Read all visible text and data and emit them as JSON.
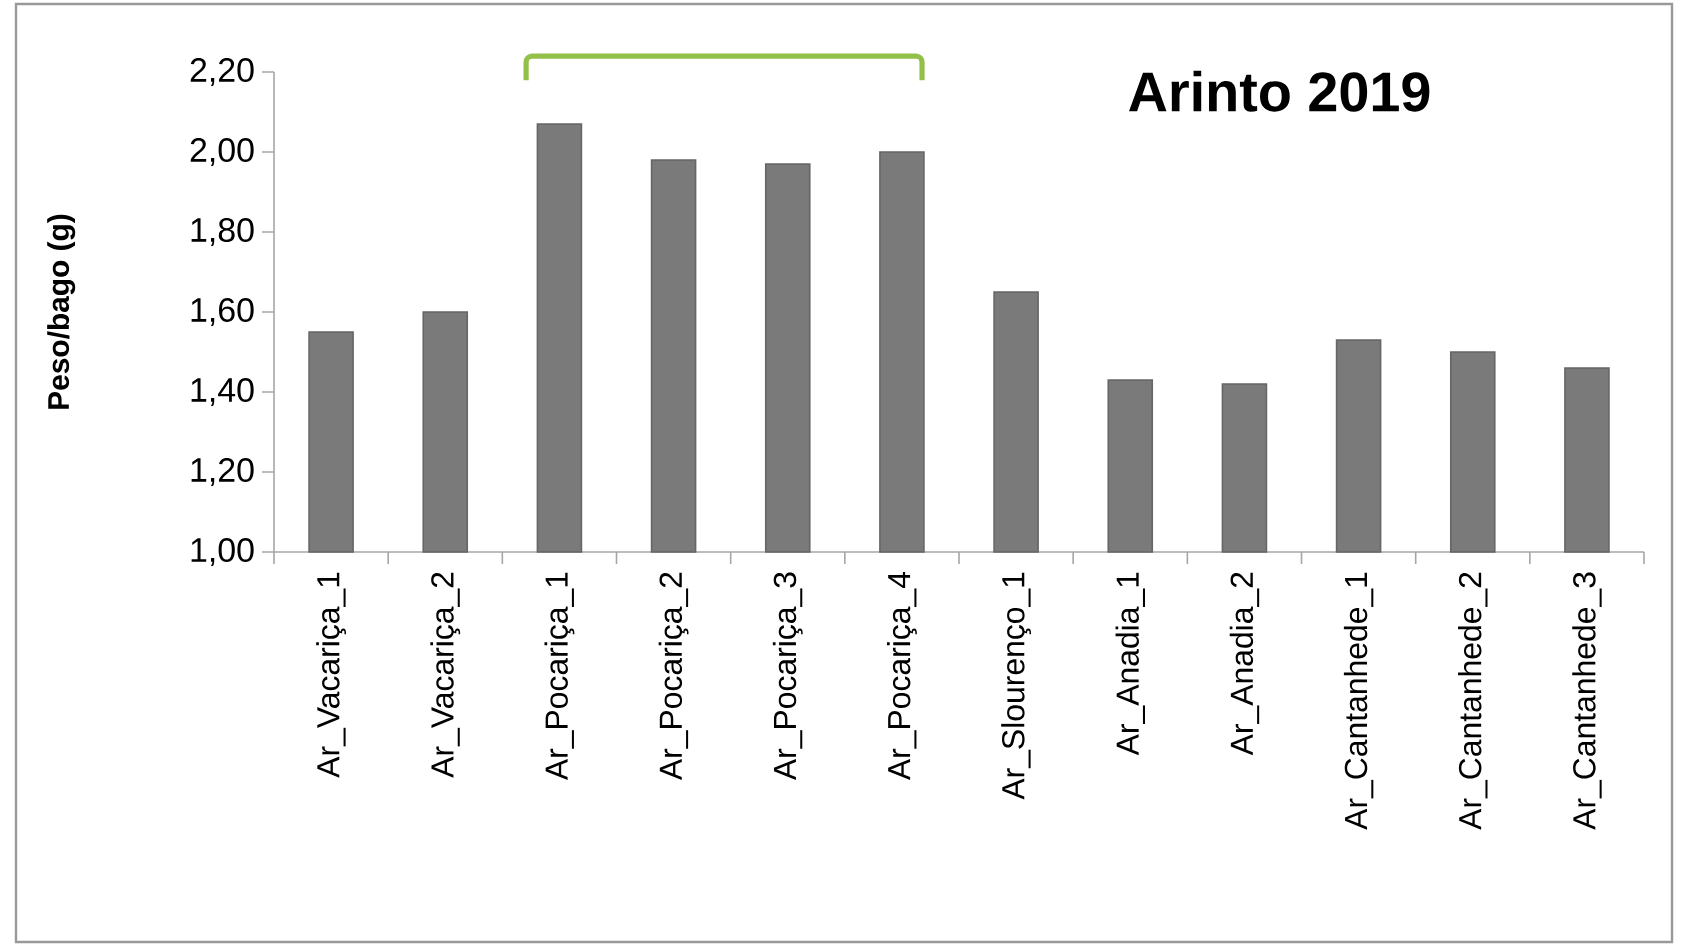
{
  "chart_data": {
    "type": "bar",
    "title": "Arinto 2019",
    "ylabel": "Peso/bago (g)",
    "categories": [
      "Ar_Vacariça_1",
      "Ar_Vacariça_2",
      "Ar_Pocariça_1",
      "Ar_Pocariça_2",
      "Ar_Pocariça_3",
      "Ar_Pocariça_4",
      "Ar_Slourenço_1",
      "Ar_Anadia_1",
      "Ar_Anadia_2",
      "Ar_Cantanhede_1",
      "Ar_Cantanhede_2",
      "Ar_Cantanhede_3"
    ],
    "values": [
      1.55,
      1.6,
      2.07,
      1.98,
      1.97,
      2.0,
      1.65,
      1.43,
      1.42,
      1.53,
      1.5,
      1.46
    ],
    "color": "#7a7a7a",
    "ylim": [
      1.0,
      2.2
    ],
    "yticks": [
      {
        "value": 1.0,
        "label": "1,00"
      },
      {
        "value": 1.2,
        "label": "1,20"
      },
      {
        "value": 1.4,
        "label": "1,40"
      },
      {
        "value": 1.6,
        "label": "1,60"
      },
      {
        "value": 1.8,
        "label": "1,80"
      },
      {
        "value": 2.0,
        "label": "2,00"
      },
      {
        "value": 2.2,
        "label": "2,20"
      }
    ],
    "grid": false
  }
}
